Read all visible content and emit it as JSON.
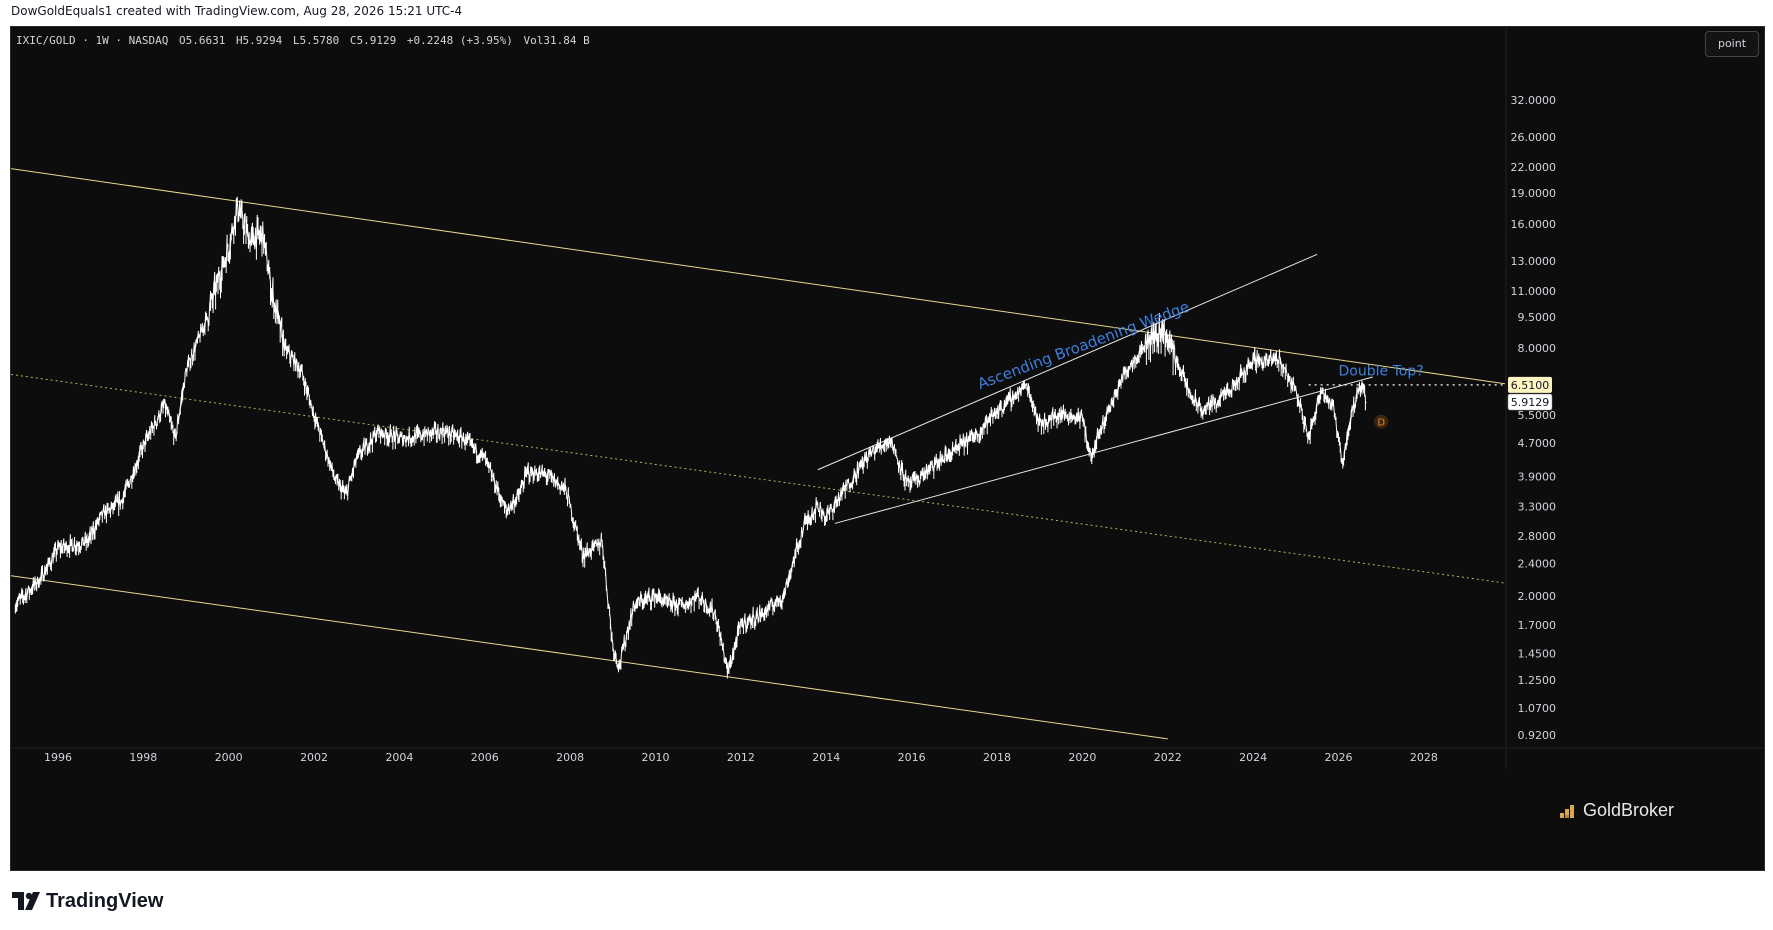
{
  "header": {
    "author_line": "DowGoldEquals1 created with TradingView.com, Aug 28, 2026 15:21 UTC-4"
  },
  "legend": {
    "symbol": "IXIC/GOLD · 1W · NASDAQ",
    "open": "O5.6631",
    "high": "H5.9294",
    "low": "L5.5780",
    "close": "C5.9129",
    "change": "+0.2248 (+3.95%)",
    "volume": "Vol31.84 B"
  },
  "toolbar": {
    "scale_button": "point"
  },
  "footer": {
    "brand": "TradingView"
  },
  "watermark": {
    "brand": "GoldBroker"
  },
  "colors": {
    "background": "#0d0d0d",
    "price_line": "#ffffff",
    "channel_line": "#e9d78e",
    "midline": "#bfb05a",
    "wedge_line": "#e8e8e8",
    "annotation": "#3d7fe0",
    "label_highlight": "#fff5c2"
  },
  "chart_data": {
    "type": "line",
    "series": [
      {
        "x": [
          1995.0,
          1995.6,
          1996.0,
          1996.7,
          1997.0,
          1997.5,
          1998.0,
          1998.5,
          1998.75,
          1999.0,
          1999.5,
          2000.0,
          2000.2,
          2000.5,
          2000.8,
          2001.0,
          2001.3,
          2001.7,
          2002.0,
          2002.5,
          2002.75,
          2003.0,
          2003.5,
          2004.0,
          2004.5,
          2005.0,
          2005.5,
          2006.0,
          2006.5,
          2006.8,
          2007.0,
          2007.5,
          2007.9,
          2008.3,
          2008.75,
          2009.0,
          2009.15,
          2009.5,
          2010.0,
          2010.3,
          2010.7,
          2011.0,
          2011.4,
          2011.7,
          2012.0,
          2012.5,
          2013.0,
          2013.5,
          2013.8,
          2014.0,
          2014.5,
          2015.0,
          2015.5,
          2015.9,
          2016.1,
          2016.5,
          2017.0,
          2017.5,
          2018.0,
          2018.7,
          2019.0,
          2019.5,
          2020.0,
          2020.2,
          2020.6,
          2021.0,
          2021.5,
          2021.9,
          2022.2,
          2022.5,
          2022.8,
          2023.0,
          2023.5,
          2024.0,
          2024.3,
          2024.6,
          2025.0,
          2025.3,
          2025.6,
          2025.9,
          2026.1,
          2026.3,
          2026.55,
          2026.65
        ],
        "values": [
          1.9,
          2.2,
          2.6,
          2.7,
          3.1,
          3.4,
          4.6,
          5.8,
          4.8,
          7.0,
          9.5,
          14.0,
          17.5,
          14.5,
          15.0,
          11.0,
          8.0,
          7.0,
          5.5,
          3.8,
          3.5,
          4.3,
          5.0,
          4.8,
          4.9,
          5.0,
          4.8,
          4.3,
          3.2,
          3.5,
          4.0,
          3.9,
          3.6,
          2.5,
          2.7,
          1.5,
          1.35,
          1.9,
          2.0,
          1.9,
          1.9,
          2.0,
          1.8,
          1.3,
          1.7,
          1.8,
          2.0,
          3.0,
          3.3,
          3.1,
          3.7,
          4.4,
          4.8,
          3.7,
          3.8,
          4.1,
          4.5,
          4.9,
          5.6,
          6.5,
          5.2,
          5.5,
          5.4,
          4.3,
          5.6,
          7.0,
          8.2,
          8.8,
          7.5,
          6.2,
          5.6,
          5.8,
          6.3,
          7.5,
          7.4,
          7.5,
          6.3,
          4.8,
          6.4,
          5.6,
          4.2,
          5.5,
          6.5,
          5.9129
        ]
      }
    ],
    "x_axis": {
      "ticks": [
        "1996",
        "1998",
        "2000",
        "2002",
        "2004",
        "2006",
        "2008",
        "2010",
        "2012",
        "2014",
        "2016",
        "2018",
        "2020",
        "2022",
        "2024",
        "2026",
        "2028"
      ],
      "range": [
        1994.9,
        2029.9
      ]
    },
    "y_axis": {
      "scale": "log",
      "ticks": [
        "32.0000",
        "26.0000",
        "22.0000",
        "19.0000",
        "16.0000",
        "13.0000",
        "11.0000",
        "9.5000",
        "8.0000",
        "5.5000",
        "4.7000",
        "3.9000",
        "3.3000",
        "2.8000",
        "2.4000",
        "2.0000",
        "1.7000",
        "1.4500",
        "1.2500",
        "1.0700",
        "0.9200"
      ],
      "range": [
        0.86,
        46
      ]
    },
    "price_labels": {
      "marker": "6.5100",
      "last": "5.9129"
    },
    "trendlines": {
      "channel_upper": {
        "from": [
          1994.9,
          21.8
        ],
        "to": [
          2029.9,
          6.55
        ]
      },
      "channel_lower": {
        "from": [
          1994.9,
          2.24
        ],
        "to": [
          2022.0,
          0.9
        ]
      },
      "channel_mid": {
        "from": [
          1994.9,
          6.9
        ],
        "to": [
          2029.9,
          2.15
        ]
      },
      "wedge_upper": {
        "from": [
          2013.8,
          4.05
        ],
        "to": [
          2025.5,
          13.5
        ]
      },
      "wedge_lower": {
        "from": [
          2014.2,
          3.0
        ],
        "to": [
          2026.8,
          6.8
        ]
      },
      "resistance_level": {
        "from": [
          2025.3,
          6.51
        ],
        "to": [
          2029.9,
          6.51
        ]
      }
    },
    "annotations": {
      "wedge_label": "Ascending Broadening Wedge",
      "double_top_label": "Double Top?",
      "dividend_marker": "D"
    },
    "grid": false
  }
}
